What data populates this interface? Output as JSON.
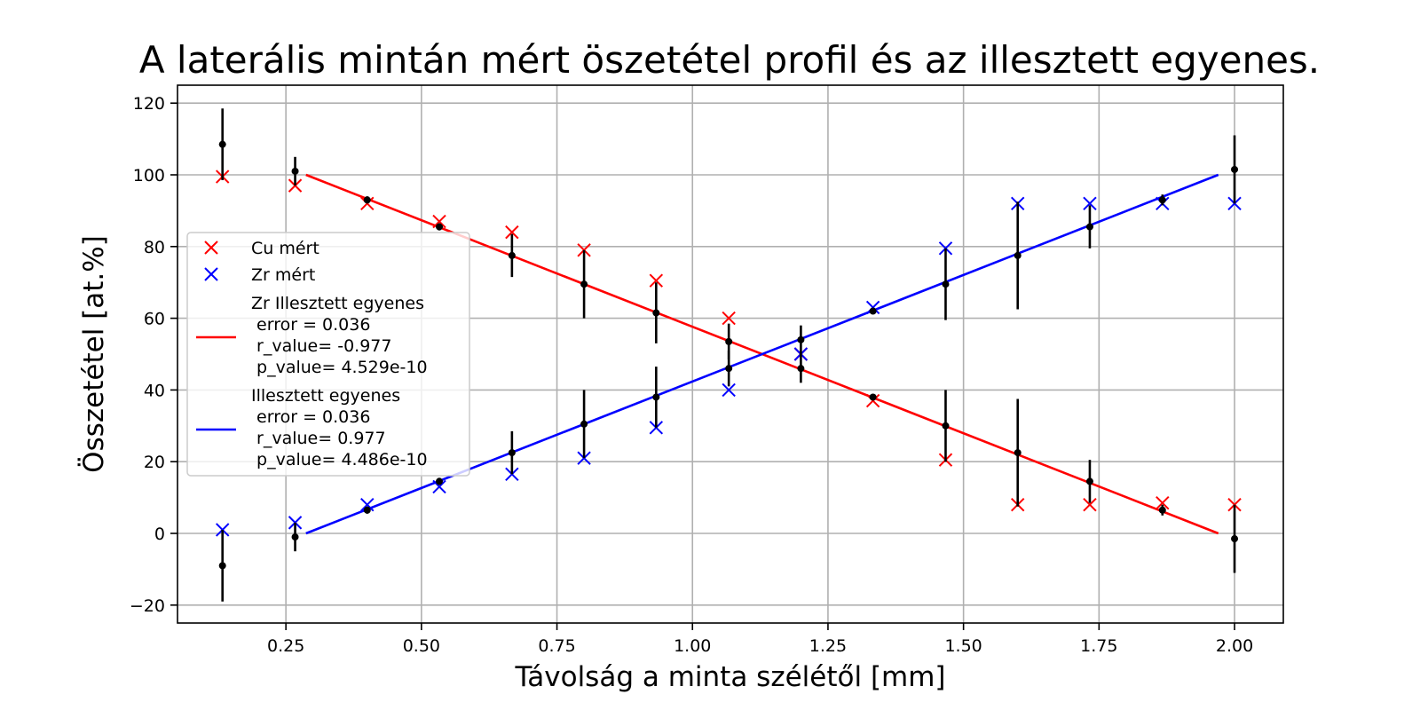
{
  "chart_data": {
    "type": "scatter",
    "title": "A laterális mintán mért öszetétel profil és az illesztett egyenes.",
    "xlabel": "Távolság a minta szélétől [mm]",
    "ylabel": "Összetétel [at.%]",
    "xlim": [
      0.05,
      2.09
    ],
    "ylim": [
      -25,
      125
    ],
    "x_ticks": [
      0.25,
      0.5,
      0.75,
      1.0,
      1.25,
      1.5,
      1.75,
      2.0
    ],
    "x_tick_labels": [
      "0.25",
      "0.50",
      "0.75",
      "1.00",
      "1.25",
      "1.50",
      "1.75",
      "2.00"
    ],
    "y_ticks": [
      -20,
      0,
      20,
      40,
      60,
      80,
      100,
      120
    ],
    "y_tick_labels": [
      "−20",
      "0",
      "20",
      "40",
      "60",
      "80",
      "100",
      "120"
    ],
    "grid": true,
    "legend_placement": "center-left",
    "x": [
      0.133,
      0.267,
      0.4,
      0.533,
      0.667,
      0.8,
      0.933,
      1.067,
      1.2,
      1.333,
      1.467,
      1.6,
      1.733,
      1.867,
      2.0
    ],
    "series": [
      {
        "name": "Cu mért",
        "kind": "scatter",
        "marker": "x",
        "color": "#ff0000",
        "y": [
          99.5,
          97,
          92,
          87,
          84,
          79,
          70.5,
          60,
          50,
          37,
          20.5,
          8,
          8,
          8.5,
          8
        ]
      },
      {
        "name": "Zr mért",
        "kind": "scatter",
        "marker": "x",
        "color": "#0000ff",
        "y": [
          1,
          3,
          8,
          13,
          16.5,
          21,
          29.5,
          40,
          50,
          63,
          79.5,
          92,
          92,
          92,
          92
        ]
      },
      {
        "name": "Zr Illesztett egyenes",
        "legend_lines": [
          "Zr Illesztett egyenes",
          " error = 0.036",
          " r_value= -0.977",
          " p_value= 4.529e-10"
        ],
        "kind": "line",
        "color": "#ff0000",
        "x": [
          0.287,
          1.97
        ],
        "y": [
          100,
          0
        ]
      },
      {
        "name": "Illesztett egyenes",
        "legend_lines": [
          "Illesztett egyenes",
          " error = 0.036",
          " r_value= 0.977",
          " p_value= 4.486e-10"
        ],
        "kind": "line",
        "color": "#0000ff",
        "x": [
          0.287,
          1.97
        ],
        "y": [
          0,
          100
        ]
      },
      {
        "kind": "errorbar",
        "color": "#000000",
        "y_upper": [
          108.5,
          101,
          93,
          85.5,
          77.5,
          69.5,
          61.5,
          53.5,
          54,
          62,
          69.5,
          77.5,
          85.5,
          93,
          101.5
        ],
        "y_lower": [
          -9,
          -1,
          6.5,
          14.5,
          22.5,
          30.5,
          38,
          46,
          46,
          38,
          30,
          22.5,
          14.5,
          6.5,
          -1.5
        ],
        "err_upper": [
          10,
          4,
          1,
          1,
          6,
          9.5,
          8.5,
          5,
          4,
          0.5,
          10,
          15,
          6,
          1.5,
          9.5
        ],
        "err_lower": [
          10,
          4,
          1,
          1,
          6,
          9.5,
          8.5,
          5,
          4,
          0.5,
          10,
          15,
          6,
          1.5,
          9.5
        ]
      }
    ]
  }
}
